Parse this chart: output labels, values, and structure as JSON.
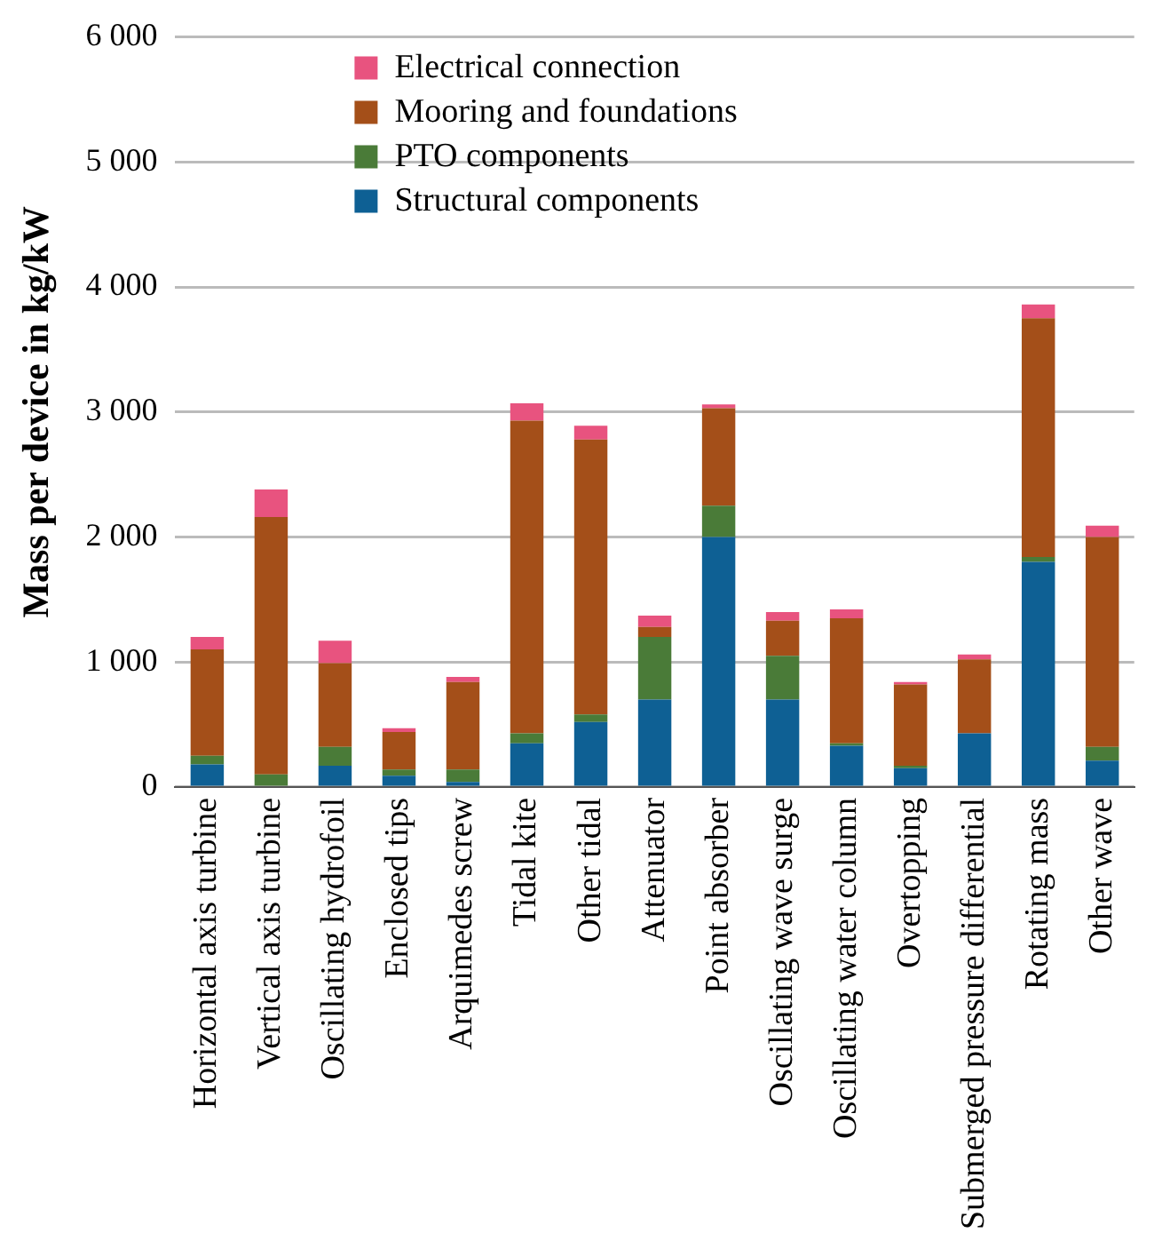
{
  "chart_data": {
    "type": "bar",
    "stacked": true,
    "ylabel": "Mass per device in kg/kW",
    "categories": [
      "Horizontal axis turbine",
      "Vertical axis turbine",
      "Oscillating hydrofoil",
      "Enclosed tips",
      "Arquimedes screw",
      "Tidal kite",
      "Other tidal",
      "Attenuator",
      "Point absorber",
      "Oscillating wave surge",
      "Oscillating water column",
      "Overtopping",
      "Submerged pressure differential",
      "Rotating mass",
      "Other wave"
    ],
    "series": [
      {
        "name": "Structural components",
        "color": "#0e6094",
        "values": [
          180,
          10,
          170,
          90,
          40,
          350,
          520,
          700,
          2000,
          700,
          330,
          150,
          430,
          1800,
          210
        ]
      },
      {
        "name": "PTO components",
        "color": "#4a7b38",
        "values": [
          70,
          90,
          150,
          50,
          100,
          80,
          60,
          500,
          250,
          350,
          20,
          20,
          null,
          40,
          110
        ]
      },
      {
        "name": "Mooring and foundations",
        "color": "#a44f19",
        "values": [
          850,
          2060,
          670,
          300,
          700,
          2500,
          2200,
          80,
          780,
          280,
          1000,
          650,
          590,
          1910,
          1680
        ]
      },
      {
        "name": "Electrical connection",
        "color": "#e8537f",
        "values": [
          100,
          220,
          180,
          30,
          40,
          140,
          110,
          90,
          30,
          70,
          70,
          20,
          40,
          110,
          90
        ]
      }
    ],
    "ylim": [
      0,
      6000
    ],
    "yticks": [
      0,
      {
        "value": 1000,
        "label": "1 000"
      },
      {
        "value": 2000,
        "label": "2 000"
      },
      {
        "value": 3000,
        "label": "3 000"
      },
      {
        "value": 4000,
        "label": "4 000"
      },
      {
        "value": 5000,
        "label": "5 000"
      },
      {
        "value": 6000,
        "label": "6 000"
      }
    ],
    "grid": "y",
    "legend": "top"
  }
}
